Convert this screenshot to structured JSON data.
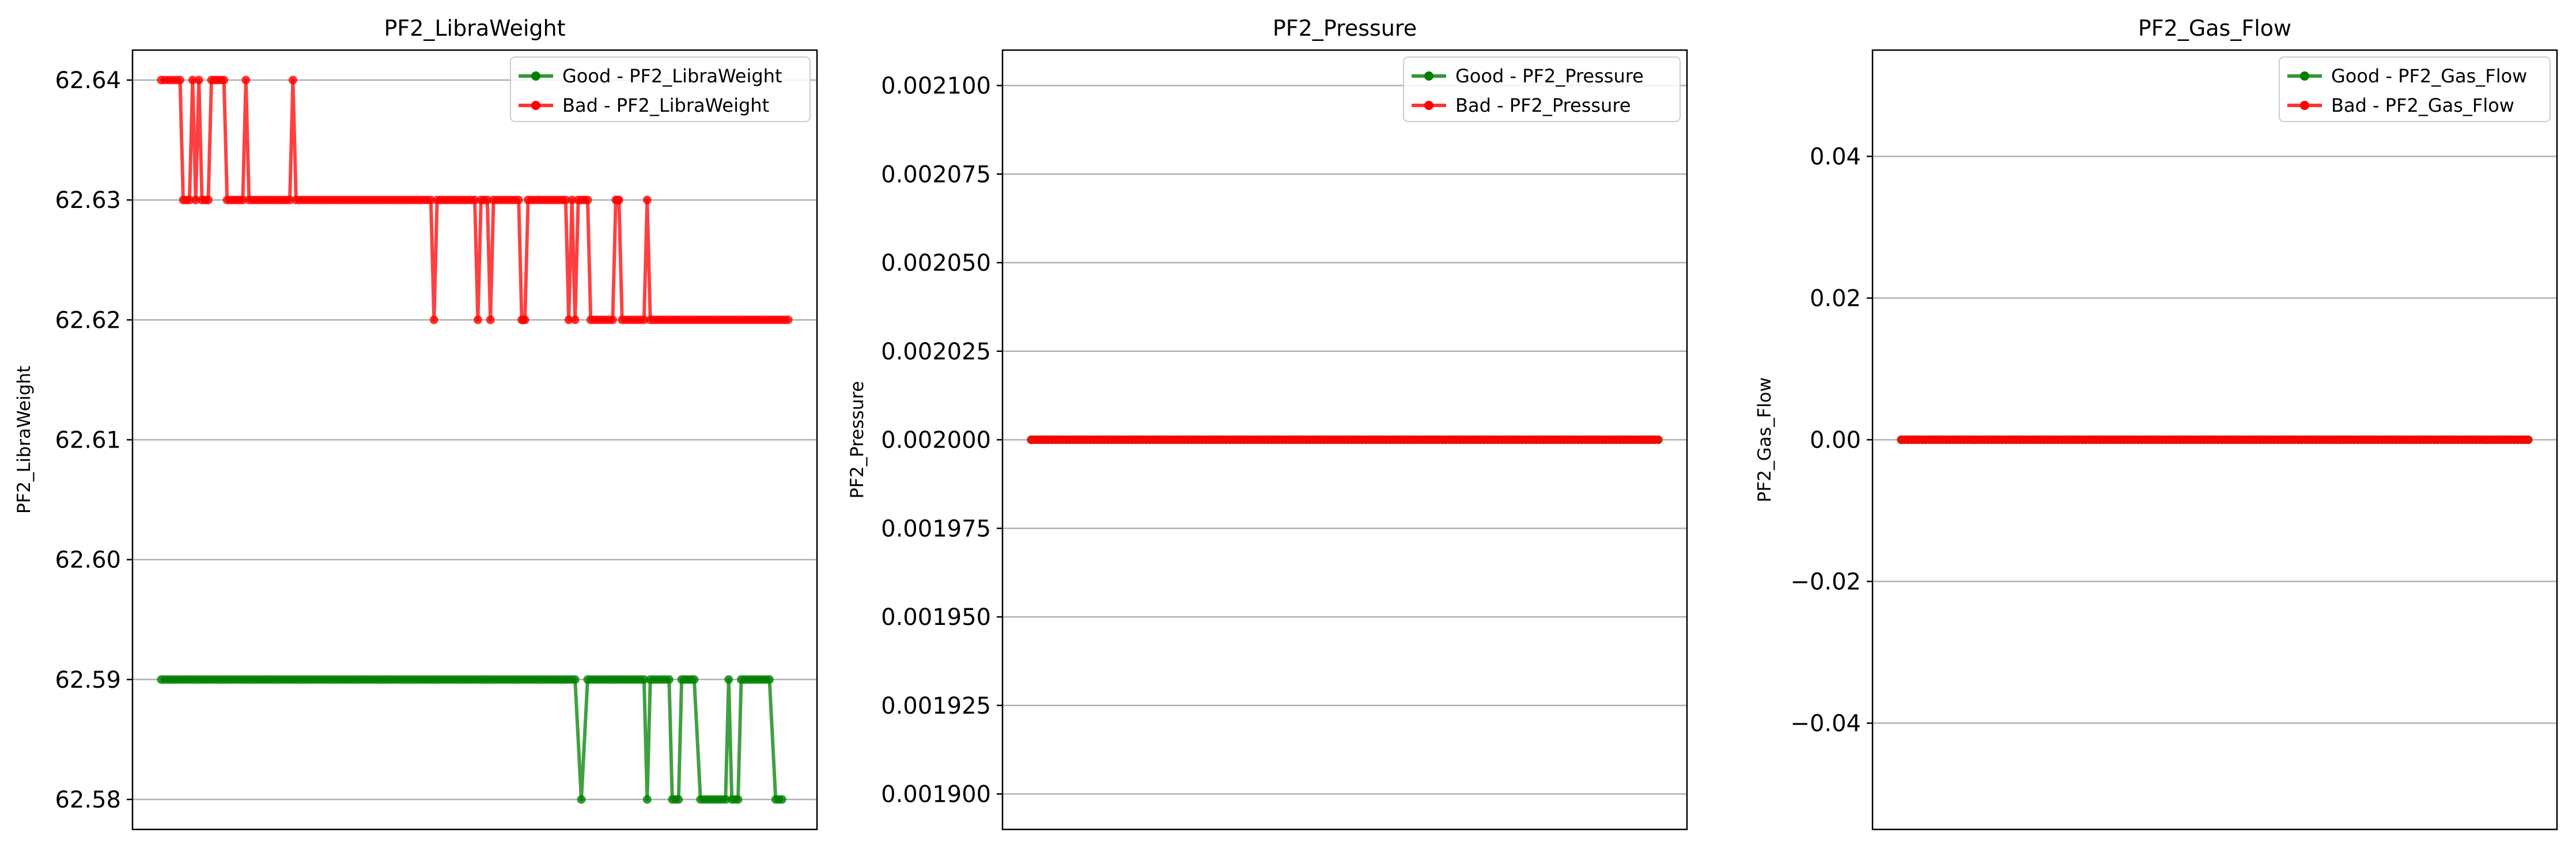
{
  "chart_data": [
    {
      "type": "line",
      "title": "PF2_LibraWeight",
      "xlabel": "",
      "ylabel": "PF2_LibraWeight",
      "ylim": [
        62.5775,
        62.6425
      ],
      "yticks": [
        62.58,
        62.59,
        62.6,
        62.61,
        62.62,
        62.63,
        62.64
      ],
      "ytick_labels": [
        "62.58",
        "62.59",
        "62.60",
        "62.61",
        "62.62",
        "62.63",
        "62.64"
      ],
      "grid": "y",
      "legend_position": "top-right",
      "legend": [
        "Good - PF2_LibraWeight",
        "Bad - PF2_LibraWeight"
      ],
      "series": [
        {
          "name": "Good - PF2_LibraWeight",
          "color": "#008000",
          "segments": [
            {
              "range": [
                0.0,
                0.66
              ],
              "value": 62.59
            },
            {
              "at": 0.67,
              "value": 62.58
            },
            {
              "range": [
                0.68,
                0.77
              ],
              "value": 62.59
            },
            {
              "at": 0.775,
              "value": 62.58
            },
            {
              "range": [
                0.78,
                0.81
              ],
              "value": 62.59
            },
            {
              "range": [
                0.815,
                0.825
              ],
              "value": 62.58
            },
            {
              "range": [
                0.83,
                0.85
              ],
              "value": 62.59
            },
            {
              "range": [
                0.86,
                0.9
              ],
              "value": 62.58
            },
            {
              "at": 0.905,
              "value": 62.59
            },
            {
              "range": [
                0.91,
                0.92
              ],
              "value": 62.58
            },
            {
              "range": [
                0.925,
                0.97
              ],
              "value": 62.59
            },
            {
              "range": [
                0.98,
                0.99
              ],
              "value": 62.58
            }
          ]
        },
        {
          "name": "Bad - PF2_LibraWeight",
          "color": "#ff0000",
          "segments": [
            {
              "range": [
                0.0,
                0.03
              ],
              "value": 62.64
            },
            {
              "range": [
                0.035,
                0.045
              ],
              "value": 62.63
            },
            {
              "at": 0.05,
              "value": 62.64
            },
            {
              "at": 0.055,
              "value": 62.63
            },
            {
              "at": 0.06,
              "value": 62.64
            },
            {
              "range": [
                0.065,
                0.075
              ],
              "value": 62.63
            },
            {
              "range": [
                0.08,
                0.1
              ],
              "value": 62.64
            },
            {
              "range": [
                0.105,
                0.13
              ],
              "value": 62.63
            },
            {
              "at": 0.135,
              "value": 62.64
            },
            {
              "range": [
                0.14,
                0.205
              ],
              "value": 62.63
            },
            {
              "at": 0.21,
              "value": 62.64
            },
            {
              "range": [
                0.215,
                0.43
              ],
              "value": 62.63
            },
            {
              "at": 0.435,
              "value": 62.62
            },
            {
              "range": [
                0.44,
                0.5
              ],
              "value": 62.63
            },
            {
              "at": 0.505,
              "value": 62.62
            },
            {
              "range": [
                0.51,
                0.52
              ],
              "value": 62.63
            },
            {
              "at": 0.525,
              "value": 62.62
            },
            {
              "range": [
                0.53,
                0.57
              ],
              "value": 62.63
            },
            {
              "range": [
                0.575,
                0.58
              ],
              "value": 62.62
            },
            {
              "range": [
                0.585,
                0.645
              ],
              "value": 62.63
            },
            {
              "at": 0.65,
              "value": 62.62
            },
            {
              "at": 0.655,
              "value": 62.63
            },
            {
              "at": 0.66,
              "value": 62.62
            },
            {
              "range": [
                0.665,
                0.68
              ],
              "value": 62.63
            },
            {
              "range": [
                0.685,
                0.72
              ],
              "value": 62.62
            },
            {
              "range": [
                0.725,
                0.73
              ],
              "value": 62.63
            },
            {
              "range": [
                0.735,
                0.77
              ],
              "value": 62.62
            },
            {
              "at": 0.775,
              "value": 62.63
            },
            {
              "range": [
                0.78,
                1.0
              ],
              "value": 62.62
            }
          ]
        }
      ]
    },
    {
      "type": "line",
      "title": "PF2_Pressure",
      "xlabel": "",
      "ylabel": "PF2_Pressure",
      "ylim": [
        0.00189,
        0.00211
      ],
      "yticks": [
        0.0019,
        0.001925,
        0.00195,
        0.001975,
        0.002,
        0.002025,
        0.00205,
        0.002075,
        0.0021
      ],
      "ytick_labels": [
        "0.001900",
        "0.001925",
        "0.001950",
        "0.001975",
        "0.002000",
        "0.002025",
        "0.002050",
        "0.002075",
        "0.002100"
      ],
      "grid": "y",
      "legend_position": "top-right",
      "legend": [
        "Good - PF2_Pressure",
        "Bad - PF2_Pressure"
      ],
      "series": [
        {
          "name": "Good - PF2_Pressure",
          "color": "#008000",
          "segments": [
            {
              "range": [
                0.0,
                1.0
              ],
              "value": 0.002
            }
          ]
        },
        {
          "name": "Bad - PF2_Pressure",
          "color": "#ff0000",
          "segments": [
            {
              "range": [
                0.0,
                1.0
              ],
              "value": 0.002
            }
          ]
        }
      ]
    },
    {
      "type": "line",
      "title": "PF2_Gas_Flow",
      "xlabel": "",
      "ylabel": "PF2_Gas_Flow",
      "ylim": [
        -0.055,
        0.055
      ],
      "yticks": [
        -0.04,
        -0.02,
        0.0,
        0.02,
        0.04
      ],
      "ytick_labels": [
        "−0.04",
        "−0.02",
        "0.00",
        "0.02",
        "0.04"
      ],
      "grid": "y",
      "legend_position": "top-right",
      "legend": [
        "Good - PF2_Gas_Flow",
        "Bad - PF2_Gas_Flow"
      ],
      "series": [
        {
          "name": "Good - PF2_Gas_Flow",
          "color": "#008000",
          "segments": [
            {
              "range": [
                0.0,
                1.0
              ],
              "value": 0.0
            }
          ]
        },
        {
          "name": "Bad - PF2_Gas_Flow",
          "color": "#ff0000",
          "segments": [
            {
              "range": [
                0.0,
                1.0
              ],
              "value": 0.0
            }
          ]
        }
      ]
    }
  ]
}
